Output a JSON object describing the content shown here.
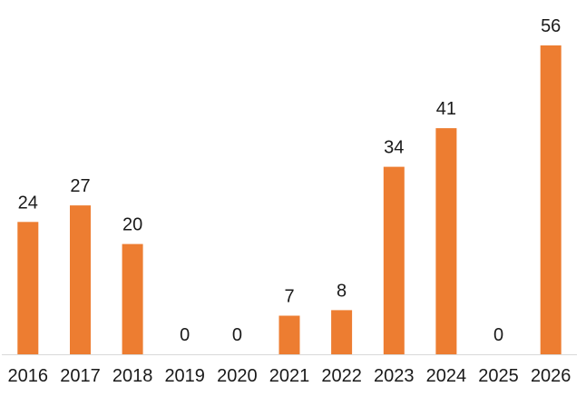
{
  "chart_data": {
    "type": "bar",
    "title": "",
    "xlabel": "",
    "ylabel": "",
    "categories": [
      "2016",
      "2017",
      "2018",
      "2019",
      "2020",
      "2021",
      "2022",
      "2023",
      "2024",
      "2025",
      "2026"
    ],
    "values": [
      24,
      27,
      20,
      0,
      0,
      7,
      8,
      34,
      41,
      0,
      56
    ],
    "ylim": [
      0,
      56
    ],
    "grid": false,
    "legend": "none",
    "colors": {
      "bar": "#ED7D31",
      "axis": "#D9D9D9",
      "text": "#1a1a1a"
    }
  }
}
